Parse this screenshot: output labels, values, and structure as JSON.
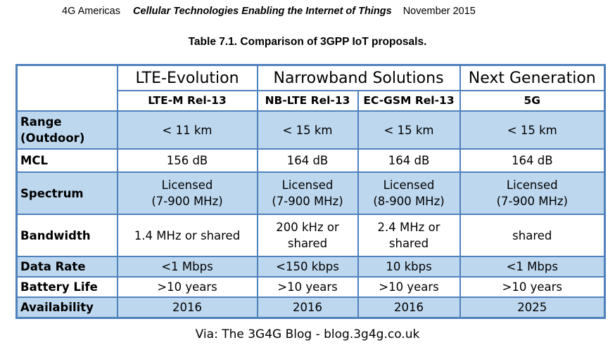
{
  "header": {
    "org": "4G Americas",
    "doc_title": "Cellular Technologies Enabling the Internet of Things",
    "date": "November 2015"
  },
  "caption": "Table 7.1. Comparison of 3GPP IoT proposals.",
  "table": {
    "groups": [
      "LTE-Evolution",
      "Narrowband Solutions",
      "Next Generation"
    ],
    "technologies": [
      "LTE-M Rel-13",
      "NB-LTE Rel-13",
      "EC-GSM Rel-13",
      "5G"
    ],
    "rows": [
      {
        "label": [
          "Range",
          "(Outdoor)"
        ],
        "cells": [
          [
            "< 11 km"
          ],
          [
            "< 15 km"
          ],
          [
            "< 15 km"
          ],
          [
            "< 15 km"
          ]
        ]
      },
      {
        "label": [
          "MCL"
        ],
        "cells": [
          [
            "156 dB"
          ],
          [
            "164 dB"
          ],
          [
            "164 dB"
          ],
          [
            "164 dB"
          ]
        ]
      },
      {
        "label": [
          "Spectrum"
        ],
        "cells": [
          [
            "Licensed",
            "(7-900 MHz)"
          ],
          [
            "Licensed",
            "(7-900 MHz)"
          ],
          [
            "Licensed",
            "(8-900 MHz)"
          ],
          [
            "Licensed",
            "(7-900 MHz)"
          ]
        ]
      },
      {
        "label": [
          "Bandwidth"
        ],
        "cells": [
          [
            "1.4 MHz or shared"
          ],
          [
            "200 kHz or",
            "shared"
          ],
          [
            "2.4 MHz or",
            "shared"
          ],
          [
            "shared"
          ]
        ]
      },
      {
        "label": [
          "Data Rate"
        ],
        "cells": [
          [
            "<1 Mbps"
          ],
          [
            "<150 kbps"
          ],
          [
            "10 kbps"
          ],
          [
            "<1 Mbps"
          ]
        ]
      },
      {
        "label": [
          "Battery Life"
        ],
        "cells": [
          [
            ">10 years"
          ],
          [
            ">10 years"
          ],
          [
            ">10 years"
          ],
          [
            ">10 years"
          ]
        ]
      },
      {
        "label": [
          "Availability"
        ],
        "cells": [
          [
            "2016"
          ],
          [
            "2016"
          ],
          [
            "2016"
          ],
          [
            "2025"
          ]
        ]
      }
    ]
  },
  "footer": "Via: The 3G4G Blog - blog.3g4g.co.uk",
  "colors": {
    "border": "#4f81bd",
    "row_fill": "#bdd7ee",
    "alt_fill": "#ffffff"
  }
}
